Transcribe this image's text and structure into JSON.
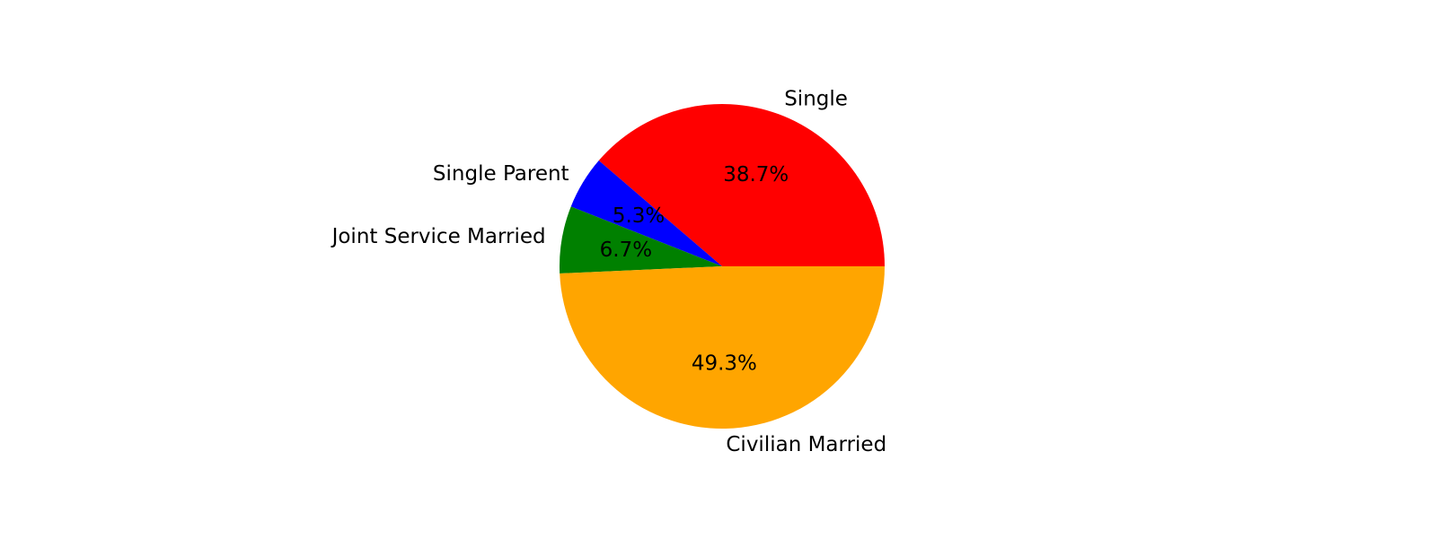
{
  "chart_data": {
    "type": "pie",
    "title": "",
    "slices": [
      {
        "label": "Single",
        "value": 38.7,
        "pct_label": "38.7%",
        "color": "#ff0000"
      },
      {
        "label": "Single Parent",
        "value": 5.3,
        "pct_label": "5.3%",
        "color": "#0000ff"
      },
      {
        "label": "Joint Service Married",
        "value": 6.7,
        "pct_label": "6.7%",
        "color": "#008000"
      },
      {
        "label": "Civilian Married",
        "value": 49.3,
        "pct_label": "49.3%",
        "color": "#ffa500"
      }
    ],
    "start_angle_deg": 0,
    "direction": "counterclockwise"
  }
}
